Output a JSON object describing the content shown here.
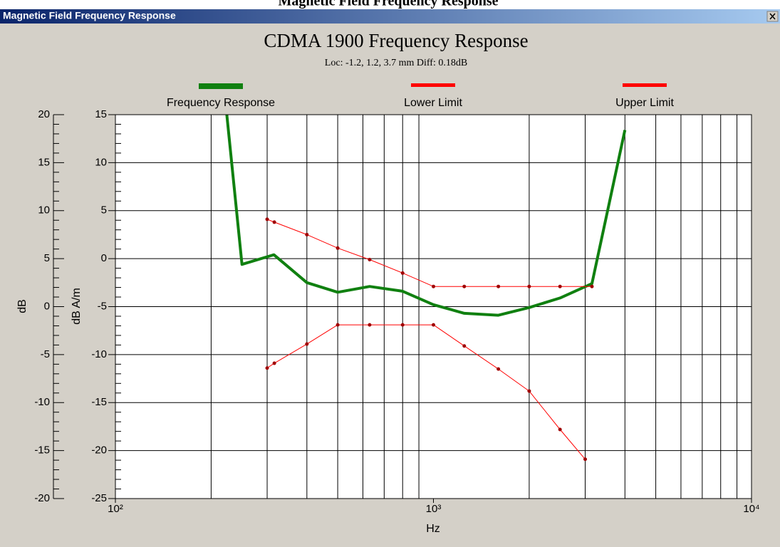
{
  "page_heading": "Magnetic Field Frequency Response",
  "window": {
    "title": "Magnetic Field Frequency Response"
  },
  "chart_data": {
    "type": "line",
    "title": "CDMA 1900 Frequency Response",
    "subtitle": "Loc: -1.2, 1.2, 3.7 mm Diff: 0.18dB",
    "xlabel": "Hz",
    "ylabel": "dB A/m",
    "y2label": "dB",
    "xscale": "log",
    "xlim": [
      100,
      10000
    ],
    "xticks": [
      {
        "value": 100,
        "label": "10²"
      },
      {
        "value": 1000,
        "label": "10³"
      },
      {
        "value": 10000,
        "label": "10⁴"
      }
    ],
    "ylim": [
      -25,
      15
    ],
    "yticks": [
      15,
      10,
      5,
      0,
      -5,
      -10,
      -15,
      -20,
      -25
    ],
    "y2lim": [
      -20,
      20
    ],
    "y2ticks": [
      20,
      15,
      10,
      5,
      0,
      -5,
      -10,
      -15,
      -20
    ],
    "grid": true,
    "minor_grid": true,
    "legend": "top",
    "series": [
      {
        "name": "Frequency Response",
        "color": "#108010",
        "width": 4,
        "markers": false,
        "x": [
          224,
          250,
          315,
          400,
          500,
          630,
          800,
          1000,
          1250,
          1600,
          2000,
          2500,
          3150,
          4000
        ],
        "values": [
          15,
          -0.6,
          0.4,
          -2.5,
          -3.5,
          -2.9,
          -3.4,
          -4.8,
          -5.7,
          -5.9,
          -5.1,
          -4.1,
          -2.6,
          13.4
        ]
      },
      {
        "name": "Lower Limit",
        "color": "#ff0000",
        "width": 1,
        "markers": true,
        "x": [
          300,
          316,
          400,
          500,
          630,
          800,
          1000,
          1250,
          1600,
          2000,
          2500,
          3000
        ],
        "values": [
          -11.4,
          -10.9,
          -8.9,
          -6.9,
          -6.9,
          -6.9,
          -6.9,
          -9.1,
          -11.5,
          -13.8,
          -17.8,
          -20.9
        ]
      },
      {
        "name": "Upper Limit",
        "color": "#ff0000",
        "width": 1,
        "markers": true,
        "x": [
          300,
          316,
          400,
          500,
          630,
          800,
          1000,
          1250,
          1600,
          2000,
          2500,
          3150
        ],
        "values": [
          4.1,
          3.8,
          2.5,
          1.1,
          -0.1,
          -1.5,
          -2.9,
          -2.9,
          -2.9,
          -2.9,
          -2.9,
          -2.9
        ]
      }
    ]
  }
}
